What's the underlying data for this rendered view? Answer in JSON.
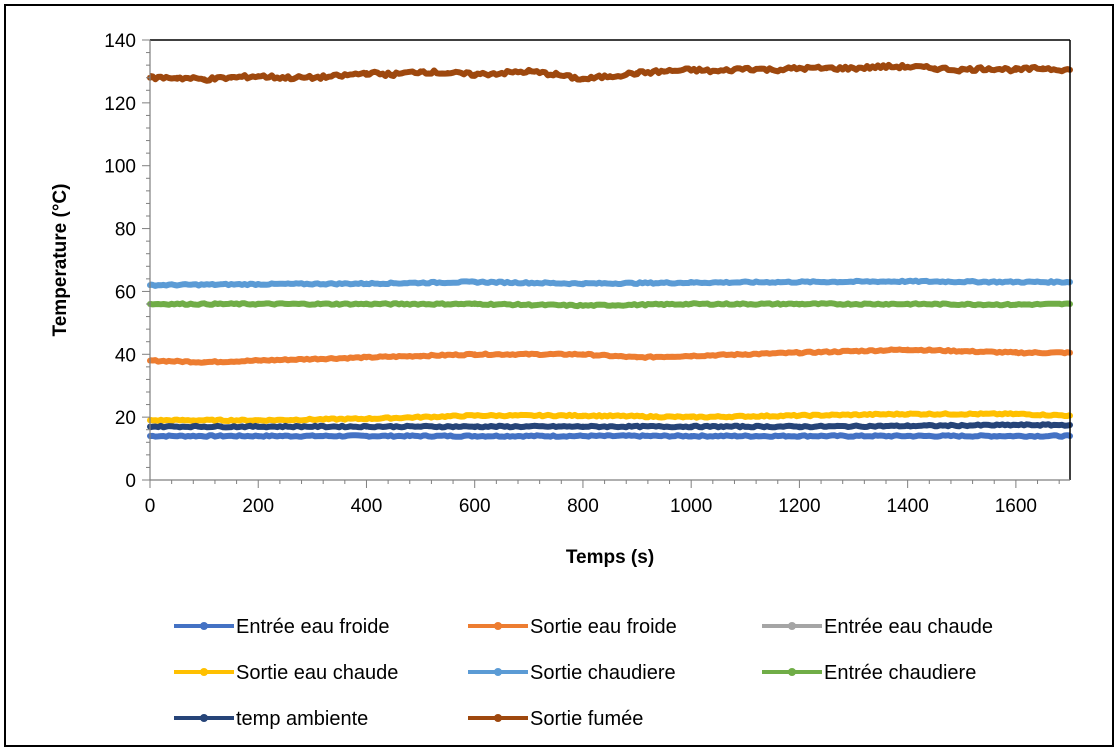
{
  "chart_data": {
    "type": "line",
    "title": "",
    "xlabel": "Temps (s)",
    "ylabel": "Temperature (°C)",
    "xlim": [
      0,
      1700
    ],
    "ylim": [
      0,
      140
    ],
    "xticks": [
      0,
      200,
      400,
      600,
      800,
      1000,
      1200,
      1400,
      1600
    ],
    "yticks": [
      0,
      20,
      40,
      60,
      80,
      100,
      120,
      140
    ],
    "grid": false,
    "legend_position": "bottom",
    "series": [
      {
        "name": "Entrée eau froide",
        "color": "#4472C4",
        "x": [
          0,
          200,
          400,
          600,
          800,
          1000,
          1200,
          1400,
          1600,
          1700
        ],
        "values": [
          14,
          14,
          14,
          14,
          14,
          14,
          14,
          14,
          14,
          14
        ]
      },
      {
        "name": "Sortie eau froide",
        "color": "#ED7D31",
        "x": [
          0,
          100,
          200,
          300,
          400,
          500,
          600,
          700,
          800,
          900,
          1000,
          1100,
          1200,
          1300,
          1400,
          1500,
          1600,
          1700
        ],
        "values": [
          38,
          37.5,
          38,
          38.5,
          39,
          39.5,
          40,
          40,
          40,
          39,
          39.5,
          40,
          40.5,
          41,
          41.5,
          41,
          40.5,
          40.5
        ]
      },
      {
        "name": "Entrée eau chaude",
        "color": "#A5A5A5",
        "x": [],
        "values": []
      },
      {
        "name": "Sortie eau chaude",
        "color": "#FFC000",
        "x": [
          0,
          200,
          400,
          600,
          800,
          1000,
          1200,
          1400,
          1600,
          1700
        ],
        "values": [
          19,
          19,
          19.5,
          20.5,
          20.5,
          20,
          20.5,
          21,
          21,
          20.5
        ]
      },
      {
        "name": "Sortie chaudiere",
        "color": "#5B9BD5",
        "x": [
          0,
          200,
          400,
          600,
          800,
          1000,
          1200,
          1400,
          1600,
          1700
        ],
        "values": [
          62,
          62.3,
          62.5,
          63,
          62.5,
          62.8,
          63,
          63.2,
          63,
          63
        ]
      },
      {
        "name": "Entrée chaudiere",
        "color": "#70AD47",
        "x": [
          0,
          200,
          400,
          600,
          800,
          1000,
          1200,
          1400,
          1600,
          1700
        ],
        "values": [
          56,
          56,
          56,
          56,
          55.5,
          56,
          56,
          56,
          55.8,
          56
        ]
      },
      {
        "name": "temp ambiente",
        "color": "#264478",
        "x": [
          0,
          200,
          400,
          600,
          800,
          1000,
          1200,
          1400,
          1600,
          1700
        ],
        "values": [
          17,
          17,
          17,
          17,
          17,
          17,
          17,
          17.2,
          17.5,
          17.5
        ]
      },
      {
        "name": "Sortie fumée",
        "color": "#9E480E",
        "x": [
          0,
          50,
          100,
          150,
          200,
          250,
          300,
          350,
          400,
          450,
          500,
          550,
          600,
          650,
          700,
          750,
          800,
          850,
          900,
          950,
          1000,
          1050,
          1100,
          1150,
          1200,
          1250,
          1300,
          1350,
          1400,
          1450,
          1500,
          1550,
          1600,
          1650,
          1700
        ],
        "values": [
          128,
          128,
          127.5,
          128,
          128.5,
          128,
          128,
          128.5,
          129.5,
          129,
          130,
          129.5,
          129,
          129.5,
          130,
          129,
          127.5,
          128.5,
          129.5,
          130,
          130.5,
          130,
          131,
          130.5,
          131,
          131,
          131,
          131.5,
          131.5,
          131,
          130.5,
          131,
          130.5,
          131,
          130.5
        ]
      }
    ]
  }
}
